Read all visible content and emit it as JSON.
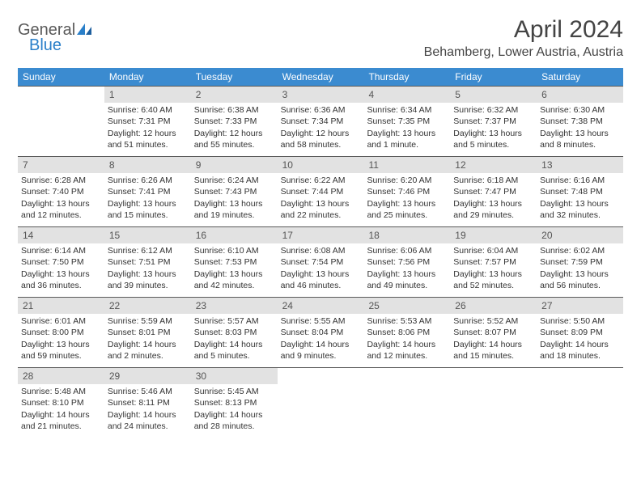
{
  "logo": {
    "text1": "General",
    "text2": "Blue"
  },
  "title": "April 2024",
  "location": "Behamberg, Lower Austria, Austria",
  "colors": {
    "header_bg": "#3b8bd0",
    "header_text": "#ffffff",
    "daynum_bg": "#e2e2e2",
    "border": "#5a5a5a",
    "logo_gray": "#5a5a5a",
    "logo_blue": "#2a7fc9"
  },
  "headers": [
    "Sunday",
    "Monday",
    "Tuesday",
    "Wednesday",
    "Thursday",
    "Friday",
    "Saturday"
  ],
  "weeks": [
    [
      {
        "n": "",
        "sr": "",
        "ss": "",
        "dl": ""
      },
      {
        "n": "1",
        "sr": "Sunrise: 6:40 AM",
        "ss": "Sunset: 7:31 PM",
        "dl": "Daylight: 12 hours and 51 minutes."
      },
      {
        "n": "2",
        "sr": "Sunrise: 6:38 AM",
        "ss": "Sunset: 7:33 PM",
        "dl": "Daylight: 12 hours and 55 minutes."
      },
      {
        "n": "3",
        "sr": "Sunrise: 6:36 AM",
        "ss": "Sunset: 7:34 PM",
        "dl": "Daylight: 12 hours and 58 minutes."
      },
      {
        "n": "4",
        "sr": "Sunrise: 6:34 AM",
        "ss": "Sunset: 7:35 PM",
        "dl": "Daylight: 13 hours and 1 minute."
      },
      {
        "n": "5",
        "sr": "Sunrise: 6:32 AM",
        "ss": "Sunset: 7:37 PM",
        "dl": "Daylight: 13 hours and 5 minutes."
      },
      {
        "n": "6",
        "sr": "Sunrise: 6:30 AM",
        "ss": "Sunset: 7:38 PM",
        "dl": "Daylight: 13 hours and 8 minutes."
      }
    ],
    [
      {
        "n": "7",
        "sr": "Sunrise: 6:28 AM",
        "ss": "Sunset: 7:40 PM",
        "dl": "Daylight: 13 hours and 12 minutes."
      },
      {
        "n": "8",
        "sr": "Sunrise: 6:26 AM",
        "ss": "Sunset: 7:41 PM",
        "dl": "Daylight: 13 hours and 15 minutes."
      },
      {
        "n": "9",
        "sr": "Sunrise: 6:24 AM",
        "ss": "Sunset: 7:43 PM",
        "dl": "Daylight: 13 hours and 19 minutes."
      },
      {
        "n": "10",
        "sr": "Sunrise: 6:22 AM",
        "ss": "Sunset: 7:44 PM",
        "dl": "Daylight: 13 hours and 22 minutes."
      },
      {
        "n": "11",
        "sr": "Sunrise: 6:20 AM",
        "ss": "Sunset: 7:46 PM",
        "dl": "Daylight: 13 hours and 25 minutes."
      },
      {
        "n": "12",
        "sr": "Sunrise: 6:18 AM",
        "ss": "Sunset: 7:47 PM",
        "dl": "Daylight: 13 hours and 29 minutes."
      },
      {
        "n": "13",
        "sr": "Sunrise: 6:16 AM",
        "ss": "Sunset: 7:48 PM",
        "dl": "Daylight: 13 hours and 32 minutes."
      }
    ],
    [
      {
        "n": "14",
        "sr": "Sunrise: 6:14 AM",
        "ss": "Sunset: 7:50 PM",
        "dl": "Daylight: 13 hours and 36 minutes."
      },
      {
        "n": "15",
        "sr": "Sunrise: 6:12 AM",
        "ss": "Sunset: 7:51 PM",
        "dl": "Daylight: 13 hours and 39 minutes."
      },
      {
        "n": "16",
        "sr": "Sunrise: 6:10 AM",
        "ss": "Sunset: 7:53 PM",
        "dl": "Daylight: 13 hours and 42 minutes."
      },
      {
        "n": "17",
        "sr": "Sunrise: 6:08 AM",
        "ss": "Sunset: 7:54 PM",
        "dl": "Daylight: 13 hours and 46 minutes."
      },
      {
        "n": "18",
        "sr": "Sunrise: 6:06 AM",
        "ss": "Sunset: 7:56 PM",
        "dl": "Daylight: 13 hours and 49 minutes."
      },
      {
        "n": "19",
        "sr": "Sunrise: 6:04 AM",
        "ss": "Sunset: 7:57 PM",
        "dl": "Daylight: 13 hours and 52 minutes."
      },
      {
        "n": "20",
        "sr": "Sunrise: 6:02 AM",
        "ss": "Sunset: 7:59 PM",
        "dl": "Daylight: 13 hours and 56 minutes."
      }
    ],
    [
      {
        "n": "21",
        "sr": "Sunrise: 6:01 AM",
        "ss": "Sunset: 8:00 PM",
        "dl": "Daylight: 13 hours and 59 minutes."
      },
      {
        "n": "22",
        "sr": "Sunrise: 5:59 AM",
        "ss": "Sunset: 8:01 PM",
        "dl": "Daylight: 14 hours and 2 minutes."
      },
      {
        "n": "23",
        "sr": "Sunrise: 5:57 AM",
        "ss": "Sunset: 8:03 PM",
        "dl": "Daylight: 14 hours and 5 minutes."
      },
      {
        "n": "24",
        "sr": "Sunrise: 5:55 AM",
        "ss": "Sunset: 8:04 PM",
        "dl": "Daylight: 14 hours and 9 minutes."
      },
      {
        "n": "25",
        "sr": "Sunrise: 5:53 AM",
        "ss": "Sunset: 8:06 PM",
        "dl": "Daylight: 14 hours and 12 minutes."
      },
      {
        "n": "26",
        "sr": "Sunrise: 5:52 AM",
        "ss": "Sunset: 8:07 PM",
        "dl": "Daylight: 14 hours and 15 minutes."
      },
      {
        "n": "27",
        "sr": "Sunrise: 5:50 AM",
        "ss": "Sunset: 8:09 PM",
        "dl": "Daylight: 14 hours and 18 minutes."
      }
    ],
    [
      {
        "n": "28",
        "sr": "Sunrise: 5:48 AM",
        "ss": "Sunset: 8:10 PM",
        "dl": "Daylight: 14 hours and 21 minutes."
      },
      {
        "n": "29",
        "sr": "Sunrise: 5:46 AM",
        "ss": "Sunset: 8:11 PM",
        "dl": "Daylight: 14 hours and 24 minutes."
      },
      {
        "n": "30",
        "sr": "Sunrise: 5:45 AM",
        "ss": "Sunset: 8:13 PM",
        "dl": "Daylight: 14 hours and 28 minutes."
      },
      {
        "n": "",
        "sr": "",
        "ss": "",
        "dl": ""
      },
      {
        "n": "",
        "sr": "",
        "ss": "",
        "dl": ""
      },
      {
        "n": "",
        "sr": "",
        "ss": "",
        "dl": ""
      },
      {
        "n": "",
        "sr": "",
        "ss": "",
        "dl": ""
      }
    ]
  ]
}
